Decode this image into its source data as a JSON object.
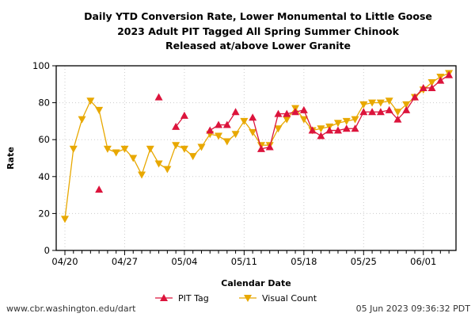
{
  "chart_data": {
    "type": "line",
    "title": [
      "Daily YTD Conversion Rate, Lower Monumental to Little Goose",
      "2023 Adult PIT Tagged All Spring Summer Chinook",
      "Released at/above Lower Granite"
    ],
    "xlabel": "Calendar Date",
    "ylabel": "Rate",
    "ylim": [
      0,
      100
    ],
    "yticks": [
      0,
      20,
      40,
      60,
      80,
      100
    ],
    "x": [
      "04/20",
      "04/21",
      "04/22",
      "04/23",
      "04/24",
      "04/25",
      "04/26",
      "04/27",
      "04/28",
      "04/29",
      "04/30",
      "05/01",
      "05/02",
      "05/03",
      "05/04",
      "05/05",
      "05/06",
      "05/07",
      "05/08",
      "05/09",
      "05/10",
      "05/11",
      "05/12",
      "05/13",
      "05/14",
      "05/15",
      "05/16",
      "05/17",
      "05/18",
      "05/19",
      "05/20",
      "05/21",
      "05/22",
      "05/23",
      "05/24",
      "05/25",
      "05/26",
      "05/27",
      "05/28",
      "05/29",
      "05/30",
      "05/31",
      "06/01",
      "06/02",
      "06/03",
      "06/04"
    ],
    "xticks": [
      "04/20",
      "04/27",
      "05/04",
      "05/11",
      "05/18",
      "05/25",
      "06/01"
    ],
    "grid": true,
    "legend": "bottom",
    "series": [
      {
        "name": "PIT Tag",
        "color": "#dc143c",
        "marker": "triangle-up",
        "values": [
          null,
          null,
          null,
          null,
          33,
          null,
          null,
          null,
          null,
          null,
          null,
          83,
          null,
          67,
          73,
          null,
          null,
          65,
          68,
          68,
          75,
          null,
          72,
          55,
          56,
          74,
          74,
          75,
          76,
          65,
          62,
          65,
          65,
          66,
          66,
          75,
          75,
          75,
          76,
          71,
          76,
          83,
          88,
          88,
          92,
          95
        ]
      },
      {
        "name": "Visual Count",
        "color": "#e8a800",
        "marker": "triangle-down",
        "values": [
          17,
          55,
          71,
          81,
          76,
          55,
          53,
          55,
          50,
          41,
          55,
          47,
          44,
          57,
          55,
          51,
          56,
          63,
          62,
          59,
          63,
          70,
          64,
          57,
          57,
          66,
          71,
          77,
          71,
          65,
          66,
          67,
          69,
          70,
          71,
          79,
          80,
          80,
          81,
          75,
          79,
          83,
          87,
          91,
          94,
          96
        ]
      }
    ]
  },
  "footer": {
    "left": "www.cbr.washington.edu/dart",
    "right": "05 Jun 2023 09:36:32 PDT"
  }
}
